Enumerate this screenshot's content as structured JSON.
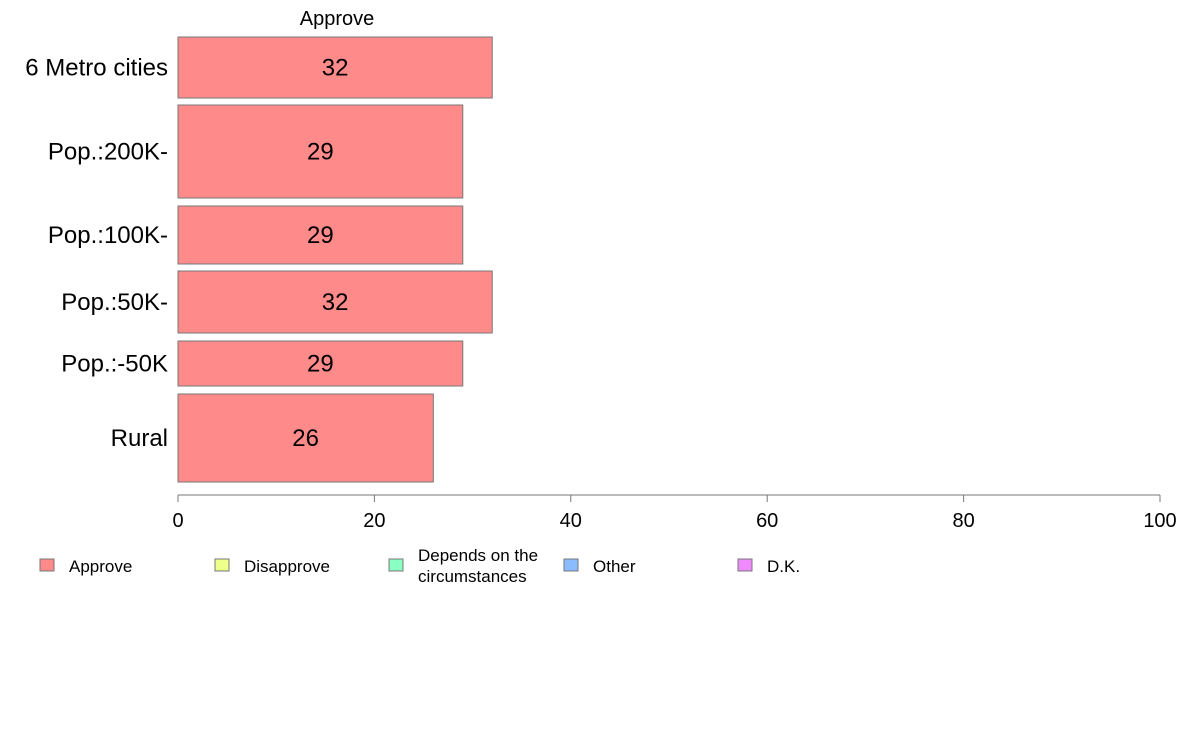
{
  "chart_data": {
    "type": "bar",
    "orientation": "horizontal",
    "stacked": true,
    "column_title": "Approve",
    "categories": [
      "6 Metro cities",
      "Pop.:200K-",
      "Pop.:100K-",
      "Pop.:50K-",
      "Pop.:-50K",
      "Rural"
    ],
    "series": [
      {
        "name": "Approve",
        "values": [
          32,
          29,
          29,
          32,
          29,
          26
        ],
        "color": "#ff8a8a"
      }
    ],
    "data_labels": [
      "32",
      "29",
      "29",
      "32",
      "29",
      "26"
    ],
    "xlim": [
      0,
      100
    ],
    "xticks": [
      "0",
      "20",
      "40",
      "60",
      "80",
      "100"
    ],
    "grid": false,
    "legend_position": "bottom",
    "legend": [
      {
        "label": "Approve",
        "color": "#ff8a8a"
      },
      {
        "label": "Disapprove",
        "color": "#eeff8a"
      },
      {
        "label": "Depends on the circumstances",
        "lines": [
          "Depends on the",
          "circumstances"
        ],
        "color": "#8affc4"
      },
      {
        "label": "Other",
        "color": "#8abcff"
      },
      {
        "label": "D.K.",
        "color": "#f08aff"
      }
    ]
  }
}
